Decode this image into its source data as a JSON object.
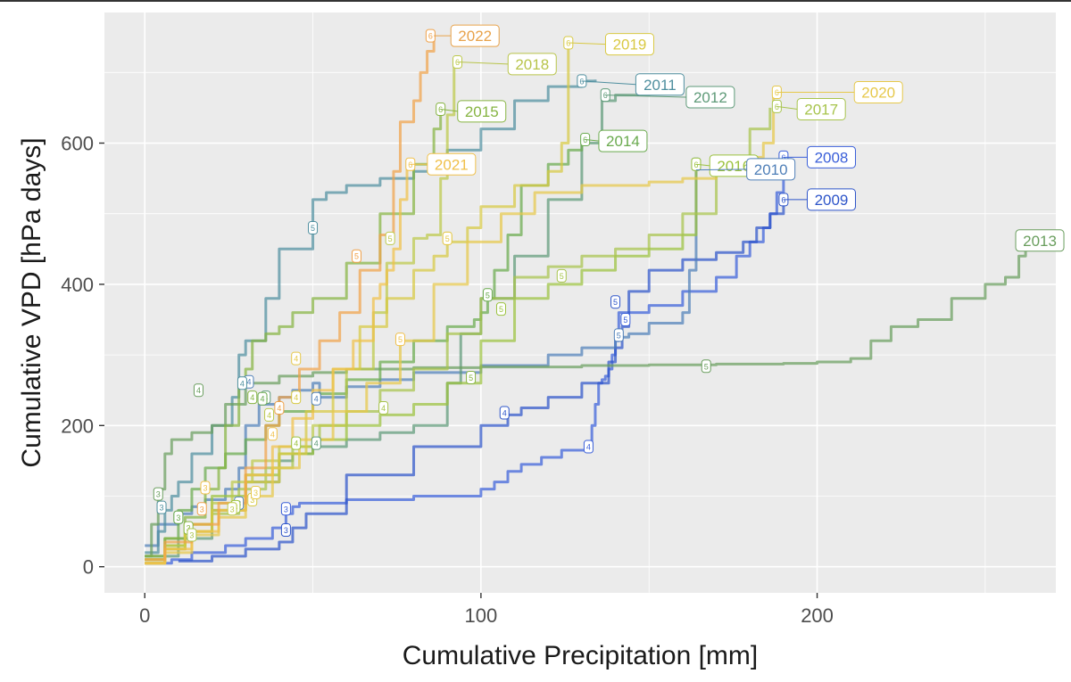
{
  "chart_data": {
    "type": "line",
    "xlabel": "Cumulative Precipitation [mm]",
    "ylabel": "Cumulative VPD [hPa days]",
    "xlim": [
      -12,
      271
    ],
    "ylim": [
      -37,
      785
    ],
    "x_ticks": [
      0,
      100,
      200
    ],
    "x_tick_labels": [
      "0",
      "100",
      "200"
    ],
    "y_ticks": [
      0,
      200,
      400,
      600
    ],
    "y_tick_labels": [
      "0",
      "200",
      "400",
      "600"
    ],
    "grid": true,
    "background": "#ebebeb",
    "series": [
      {
        "name": "2008",
        "color": "#3a5fd9",
        "label_at": [
          200,
          580
        ],
        "x": [
          0,
          8,
          14,
          24,
          30,
          38,
          42,
          44,
          46,
          60,
          80,
          100,
          104,
          108,
          112,
          118,
          124,
          132,
          133,
          134,
          135,
          136,
          137,
          138,
          139,
          140,
          141,
          150,
          160,
          170,
          176,
          180,
          184,
          186,
          188,
          190
        ],
        "y": [
          5,
          10,
          20,
          30,
          40,
          55,
          75,
          85,
          90,
          95,
          100,
          110,
          120,
          135,
          145,
          155,
          165,
          170,
          200,
          230,
          260,
          265,
          270,
          280,
          300,
          320,
          360,
          370,
          390,
          410,
          440,
          460,
          480,
          500,
          530,
          580
        ],
        "months": [
          [
            42,
            82,
            "3"
          ],
          [
            132,
            170,
            "4"
          ],
          [
            143,
            350,
            "5"
          ],
          [
            190,
            580,
            "6"
          ]
        ]
      },
      {
        "name": "2009",
        "color": "#2e55c9",
        "label_at": [
          200,
          520
        ],
        "x": [
          10,
          20,
          30,
          40,
          44,
          48,
          60,
          80,
          100,
          108,
          112,
          120,
          130,
          138,
          140,
          142,
          144,
          150,
          160,
          170,
          178,
          182,
          186,
          190
        ],
        "y": [
          8,
          15,
          25,
          35,
          55,
          75,
          130,
          170,
          200,
          215,
          225,
          240,
          260,
          290,
          310,
          340,
          390,
          420,
          435,
          445,
          460,
          480,
          500,
          520
        ],
        "months": [
          [
            42,
            52,
            "3"
          ],
          [
            107,
            218,
            "4"
          ],
          [
            140,
            375,
            "5"
          ],
          [
            190,
            520,
            "6"
          ]
        ]
      },
      {
        "name": "2010",
        "color": "#4f7fb8",
        "label_at": [
          180,
          565
        ],
        "x": [
          0,
          4,
          10,
          14,
          18,
          24,
          28,
          30,
          34,
          40,
          44,
          50,
          52,
          60,
          70,
          80,
          100,
          120,
          130,
          140,
          144,
          150,
          160,
          162,
          164
        ],
        "y": [
          30,
          60,
          75,
          85,
          95,
          110,
          140,
          200,
          230,
          240,
          250,
          260,
          240,
          255,
          265,
          275,
          285,
          300,
          310,
          325,
          330,
          345,
          360,
          420,
          560
        ],
        "months": [
          [
            28,
            90,
            "3"
          ],
          [
            31,
            262,
            "4"
          ],
          [
            51,
            238,
            "4"
          ],
          [
            141,
            328,
            "5"
          ],
          [
            164,
            570,
            "6"
          ]
        ]
      },
      {
        "name": "2011",
        "color": "#4f8f9f",
        "label_at": [
          140,
          680
        ],
        "x": [
          0,
          4,
          6,
          8,
          10,
          14,
          20,
          26,
          28,
          30,
          36,
          40,
          50,
          54,
          60,
          70,
          80,
          90,
          100,
          110,
          120,
          130,
          134
        ],
        "y": [
          20,
          50,
          80,
          100,
          120,
          160,
          200,
          240,
          300,
          320,
          380,
          450,
          520,
          530,
          540,
          550,
          560,
          590,
          620,
          660,
          680,
          688,
          690
        ],
        "months": [
          [
            5,
            84,
            "3"
          ],
          [
            29,
            260,
            "4"
          ],
          [
            50,
            480,
            "5"
          ],
          [
            130,
            688,
            "6"
          ]
        ]
      },
      {
        "name": "2012",
        "color": "#5e9a78",
        "label_at": [
          157,
          665
        ],
        "x": [
          0,
          10,
          20,
          30,
          40,
          44,
          50,
          60,
          70,
          80,
          90,
          94,
          100,
          110,
          120,
          130,
          136,
          140,
          150,
          156
        ],
        "y": [
          15,
          40,
          80,
          120,
          150,
          160,
          170,
          180,
          190,
          200,
          260,
          330,
          380,
          440,
          520,
          600,
          660,
          668,
          672,
          675
        ],
        "months": [
          [
            10,
            70,
            "3"
          ],
          [
            36,
            240,
            "4"
          ],
          [
            51,
            175,
            "4"
          ],
          [
            137,
            668,
            "6"
          ]
        ]
      },
      {
        "name": "2013",
        "color": "#6a9e5e",
        "label_at": [
          262,
          460
        ],
        "x": [
          0,
          2,
          4,
          6,
          8,
          14,
          20,
          24,
          30,
          40,
          50,
          60,
          80,
          100,
          130,
          150,
          170,
          190,
          200,
          210,
          216,
          222,
          230,
          240,
          250,
          256,
          260,
          262
        ],
        "y": [
          15,
          60,
          110,
          160,
          180,
          190,
          200,
          230,
          260,
          270,
          275,
          280,
          282,
          283,
          285,
          286,
          287,
          288,
          290,
          295,
          320,
          340,
          350,
          380,
          400,
          410,
          440,
          465
        ],
        "months": [
          [
            4,
            103,
            "3"
          ],
          [
            16,
            250,
            "4"
          ],
          [
            167,
            284,
            "5"
          ],
          [
            262,
            465,
            "6"
          ]
        ]
      },
      {
        "name": "2014",
        "color": "#6aaa4e",
        "label_at": [
          137,
          605
        ],
        "x": [
          0,
          6,
          10,
          14,
          18,
          24,
          30,
          36,
          40,
          50,
          60,
          70,
          80,
          90,
          98,
          100,
          102,
          104,
          108,
          112,
          120,
          126,
          130
        ],
        "y": [
          10,
          40,
          80,
          110,
          140,
          160,
          180,
          200,
          220,
          245,
          265,
          290,
          320,
          340,
          350,
          360,
          380,
          420,
          470,
          540,
          570,
          590,
          605
        ],
        "months": [
          [
            10,
            70,
            "3"
          ],
          [
            35,
            238,
            "4"
          ],
          [
            102,
            385,
            "5"
          ],
          [
            131,
            605,
            "6"
          ]
        ]
      },
      {
        "name": "2015",
        "color": "#86b442",
        "label_at": [
          97,
          650
        ],
        "x": [
          0,
          6,
          12,
          18,
          22,
          24,
          28,
          30,
          32,
          36,
          40,
          44,
          50,
          60,
          70,
          80,
          86,
          88
        ],
        "y": [
          15,
          40,
          70,
          110,
          140,
          200,
          260,
          280,
          320,
          330,
          340,
          360,
          380,
          430,
          500,
          570,
          620,
          650
        ],
        "months": [
          [
            13,
            55,
            "3"
          ],
          [
            32,
            240,
            "4"
          ],
          [
            97,
            268,
            "5"
          ],
          [
            88,
            648,
            "6"
          ]
        ]
      },
      {
        "name": "2016",
        "color": "#9bc23e",
        "label_at": [
          167,
          570
        ],
        "x": [
          0,
          6,
          12,
          20,
          30,
          40,
          50,
          60,
          70,
          80,
          90,
          100,
          110,
          120,
          130,
          140,
          150,
          160,
          164
        ],
        "y": [
          10,
          30,
          60,
          100,
          130,
          160,
          180,
          200,
          215,
          230,
          260,
          320,
          380,
          400,
          420,
          440,
          450,
          470,
          570
        ],
        "months": [
          [
            27,
            85,
            "3"
          ],
          [
            45,
            175,
            "4"
          ],
          [
            106,
            365,
            "5"
          ],
          [
            164,
            570,
            "6"
          ]
        ]
      },
      {
        "name": "2017",
        "color": "#a7c44c",
        "label_at": [
          188,
          650
        ],
        "x": [
          0,
          6,
          12,
          20,
          28,
          36,
          44,
          52,
          60,
          70,
          80,
          90,
          100,
          110,
          120,
          130,
          140,
          150,
          160,
          170,
          180,
          186
        ],
        "y": [
          5,
          25,
          50,
          75,
          110,
          140,
          170,
          200,
          220,
          250,
          280,
          330,
          380,
          410,
          425,
          440,
          450,
          470,
          500,
          560,
          620,
          650
        ],
        "months": [
          [
            14,
            45,
            "3"
          ],
          [
            71,
            225,
            "4"
          ],
          [
            124,
            412,
            "5"
          ],
          [
            188,
            652,
            "6"
          ]
        ]
      },
      {
        "name": "2018",
        "color": "#bcc94a",
        "label_at": [
          94,
          715
        ],
        "x": [
          0,
          6,
          12,
          20,
          26,
          32,
          40,
          50,
          60,
          68,
          72,
          80,
          84,
          88,
          90,
          92
        ],
        "y": [
          10,
          30,
          60,
          90,
          120,
          150,
          170,
          200,
          280,
          360,
          430,
          465,
          470,
          550,
          640,
          715
        ],
        "months": [
          [
            26,
            82,
            "3"
          ],
          [
            37,
            215,
            "4"
          ],
          [
            73,
            465,
            "5"
          ],
          [
            93,
            715,
            "6"
          ]
        ]
      },
      {
        "name": "2019",
        "color": "#d7c943",
        "label_at": [
          126,
          740
        ],
        "x": [
          0,
          6,
          12,
          20,
          30,
          40,
          48,
          56,
          64,
          72,
          80,
          86,
          90,
          96,
          100,
          110,
          120,
          124,
          126
        ],
        "y": [
          5,
          25,
          50,
          80,
          120,
          160,
          220,
          280,
          340,
          380,
          420,
          440,
          460,
          480,
          510,
          540,
          560,
          600,
          740
        ],
        "months": [
          [
            32,
            95,
            "3"
          ],
          [
            45,
            240,
            "4"
          ],
          [
            90,
            465,
            "5"
          ],
          [
            126,
            742,
            "6"
          ]
        ]
      },
      {
        "name": "2020",
        "color": "#e6c84a",
        "label_at": [
          188,
          670
        ],
        "x": [
          0,
          6,
          14,
          22,
          30,
          38,
          46,
          56,
          66,
          76,
          86,
          96,
          106,
          116,
          130,
          150,
          160,
          170,
          176,
          180,
          184,
          187
        ],
        "y": [
          5,
          20,
          45,
          70,
          100,
          140,
          180,
          220,
          260,
          320,
          400,
          460,
          500,
          530,
          540,
          545,
          550,
          560,
          570,
          580,
          600,
          670
        ],
        "months": [
          [
            33,
            105,
            "3"
          ],
          [
            45,
            295,
            "4"
          ],
          [
            90,
            465,
            "5"
          ],
          [
            188,
            672,
            "6"
          ]
        ]
      },
      {
        "name": "2021",
        "color": "#f0c04a",
        "label_at": [
          78,
          570
        ],
        "x": [
          0,
          6,
          14,
          22,
          30,
          38,
          44,
          50,
          56,
          62,
          68,
          70,
          72,
          74,
          76,
          78
        ],
        "y": [
          5,
          25,
          50,
          80,
          130,
          170,
          210,
          250,
          280,
          320,
          380,
          400,
          420,
          450,
          520,
          570
        ],
        "months": [
          [
            18,
            112,
            "3"
          ],
          [
            38,
            188,
            "4"
          ],
          [
            76,
            322,
            "5"
          ],
          [
            79,
            570,
            "6"
          ]
        ]
      },
      {
        "name": "2022",
        "color": "#f0a24a",
        "label_at": [
          85,
          750
        ],
        "x": [
          0,
          6,
          14,
          22,
          30,
          36,
          40,
          46,
          52,
          58,
          64,
          70,
          74,
          76,
          80,
          82,
          84,
          86
        ],
        "y": [
          10,
          35,
          60,
          90,
          140,
          200,
          240,
          280,
          320,
          360,
          420,
          470,
          560,
          630,
          660,
          700,
          730,
          750
        ],
        "months": [
          [
            17,
            82,
            "3"
          ],
          [
            40,
            225,
            "4"
          ],
          [
            63,
            440,
            "5"
          ],
          [
            85,
            752,
            "6"
          ]
        ]
      }
    ],
    "year_labels": [
      {
        "text": "2022",
        "x": 86,
        "y": 752,
        "dx": 90,
        "dy": 752,
        "color": "#e8a24a"
      },
      {
        "text": "2018",
        "x": 93,
        "y": 715,
        "dx": 107,
        "dy": 712,
        "color": "#b8c44a"
      },
      {
        "text": "2019",
        "x": 126,
        "y": 742,
        "dx": 136,
        "dy": 740,
        "color": "#d9c943"
      },
      {
        "text": "2011",
        "x": 130,
        "y": 688,
        "dx": 145,
        "dy": 683,
        "color": "#4f8f9f"
      },
      {
        "text": "2012",
        "x": 137,
        "y": 668,
        "dx": 160,
        "dy": 665,
        "color": "#5e9a78"
      },
      {
        "text": "2020",
        "x": 188,
        "y": 672,
        "dx": 210,
        "dy": 672,
        "color": "#e6c84a"
      },
      {
        "text": "2017",
        "x": 188,
        "y": 652,
        "dx": 193,
        "dy": 648,
        "color": "#a7c44c"
      },
      {
        "text": "2015",
        "x": 88,
        "y": 648,
        "dx": 92,
        "dy": 645,
        "color": "#86b442"
      },
      {
        "text": "2014",
        "x": 131,
        "y": 605,
        "dx": 134,
        "dy": 603,
        "color": "#6aaa4e"
      },
      {
        "text": "2021",
        "x": 79,
        "y": 570,
        "dx": 83,
        "dy": 570,
        "color": "#f0c04a"
      },
      {
        "text": "2016",
        "x": 164,
        "y": 570,
        "dx": 167,
        "dy": 568,
        "color": "#9bc23e"
      },
      {
        "text": "2010",
        "x": 164,
        "y": 562,
        "dx": 178,
        "dy": 563,
        "color": "#4f7fb8"
      },
      {
        "text": "2008",
        "x": 190,
        "y": 580,
        "dx": 196,
        "dy": 580,
        "color": "#3a5fd9"
      },
      {
        "text": "2009",
        "x": 190,
        "y": 520,
        "dx": 196,
        "dy": 520,
        "color": "#2e55c9"
      },
      {
        "text": "2013",
        "x": 262,
        "y": 465,
        "dx": 258,
        "dy": 462,
        "color": "#6a9e5e"
      }
    ]
  }
}
